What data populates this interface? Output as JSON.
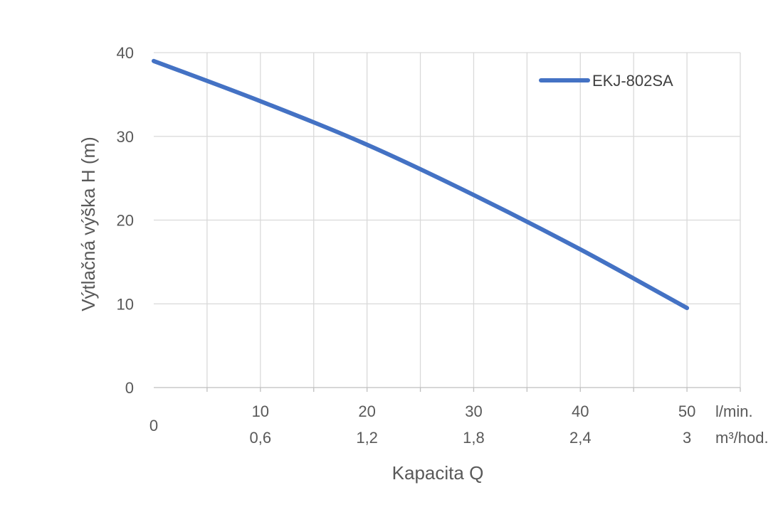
{
  "chart_data": {
    "type": "line",
    "title": "",
    "xlabel": "Kapacita Q",
    "ylabel": "Výtlačná výška H (m)",
    "xlim": [
      0,
      55
    ],
    "ylim": [
      0,
      40
    ],
    "x_ticks": [
      0,
      10,
      20,
      30,
      40,
      50
    ],
    "x_tick_labels_primary": [
      "0",
      "10",
      "20",
      "30",
      "40",
      "50"
    ],
    "x_tick_labels_secondary": [
      "",
      "0,6",
      "1,2",
      "1,8",
      "2,4",
      "3"
    ],
    "x_unit_primary": "l/min.",
    "x_unit_secondary": "m³/hod.",
    "y_ticks": [
      0,
      10,
      20,
      30,
      40
    ],
    "y_tick_labels": [
      "0",
      "10",
      "20",
      "30",
      "40"
    ],
    "grid": true,
    "legend": "top-right",
    "series": [
      {
        "name": "EKJ-802SA",
        "color": "#4472c4",
        "x": [
          0,
          10,
          20,
          30,
          40,
          50
        ],
        "y": [
          39,
          34.2,
          29,
          23,
          16.5,
          9.5
        ]
      }
    ]
  }
}
